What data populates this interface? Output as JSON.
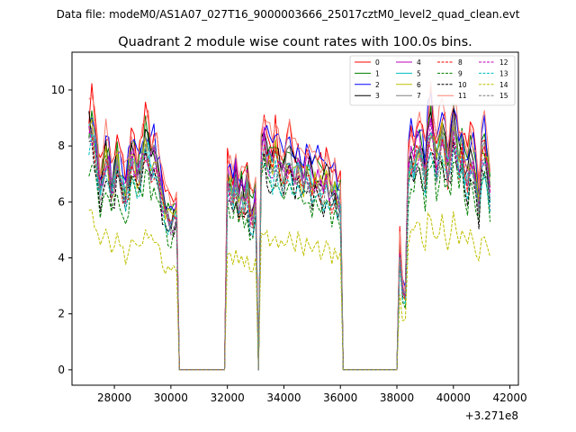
{
  "chart_data": {
    "type": "line",
    "suptitle": "Data file: modeM0/AS1A07_027T16_9000003666_25017cztM0_level2_quad_clean.evt",
    "title": "Quadrant 2 module wise count rates with 100.0s bins.",
    "xlabel": "",
    "ylabel": "",
    "x_offset_label": "+3.271e8",
    "xlim": [
      26500,
      42300
    ],
    "ylim": [
      -0.55,
      11.35
    ],
    "xticks": [
      28000,
      30000,
      32000,
      34000,
      36000,
      38000,
      40000,
      42000
    ],
    "yticks": [
      0,
      2,
      4,
      6,
      8,
      10
    ],
    "x_range": [
      27100,
      41300
    ],
    "bin_seconds": 100,
    "segments": [
      {
        "x": [
          27100,
          30200
        ],
        "profile": [
          0.9,
          0.92,
          0.89,
          0.78,
          0.7,
          0.74,
          0.8,
          0.76,
          0.68,
          0.72,
          0.78,
          0.74,
          0.7,
          0.66,
          0.72,
          0.8,
          0.78,
          0.74,
          0.76,
          0.8,
          0.86,
          0.82,
          0.78,
          0.8,
          0.76,
          0.7,
          0.64,
          0.6,
          0.58,
          0.56,
          0.58,
          0.6
        ]
      },
      {
        "x": [
          32000,
          33000
        ],
        "profile": [
          0.72,
          0.7,
          0.66,
          0.74,
          0.62,
          0.68,
          0.64,
          0.7,
          0.6,
          0.58,
          0.64
        ]
      },
      {
        "x": [
          33200,
          36000
        ],
        "profile": [
          0.82,
          0.86,
          0.8,
          0.78,
          0.76,
          0.82,
          0.78,
          0.74,
          0.72,
          0.78,
          0.8,
          0.76,
          0.74,
          0.78,
          0.72,
          0.7,
          0.76,
          0.74,
          0.7,
          0.72,
          0.74,
          0.7,
          0.68,
          0.72,
          0.7,
          0.66,
          0.68,
          0.64,
          0.66
        ]
      },
      {
        "x": [
          38100,
          41300
        ],
        "profile": [
          0.46,
          0.3,
          0.28,
          0.76,
          0.82,
          0.78,
          0.84,
          0.86,
          0.8,
          0.74,
          0.88,
          0.92,
          0.86,
          0.78,
          0.84,
          0.9,
          0.82,
          0.76,
          0.8,
          0.94,
          0.86,
          0.8,
          0.84,
          0.76,
          0.72,
          0.8,
          0.78,
          0.7,
          0.62,
          0.8,
          0.84,
          0.76,
          0.66
        ]
      }
    ],
    "legend_position": "top-right",
    "series": [
      {
        "name": "0",
        "color": "#ff0000",
        "dash": "solid",
        "peak": 10.5
      },
      {
        "name": "1",
        "color": "#008000",
        "dash": "solid",
        "peak": 9.9
      },
      {
        "name": "2",
        "color": "#0000ff",
        "dash": "solid",
        "peak": 10.3
      },
      {
        "name": "3",
        "color": "#000000",
        "dash": "solid",
        "peak": 9.7
      },
      {
        "name": "4",
        "color": "#bf00bf",
        "dash": "solid",
        "peak": 9.6
      },
      {
        "name": "5",
        "color": "#00bfbf",
        "dash": "solid",
        "peak": 9.3
      },
      {
        "name": "6",
        "color": "#bfbf00",
        "dash": "solid",
        "peak": 9.4
      },
      {
        "name": "7",
        "color": "#808080",
        "dash": "solid",
        "peak": 9.5
      },
      {
        "name": "8",
        "color": "#ff0000",
        "dash": "dashed",
        "peak": 9.1
      },
      {
        "name": "9",
        "color": "#008000",
        "dash": "dashed",
        "peak": 8.2
      },
      {
        "name": "10",
        "color": "#000000",
        "dash": "dashed",
        "peak": 8.6
      },
      {
        "name": "11",
        "color": "#fa8072",
        "dash": "solid",
        "peak": 10.6
      },
      {
        "name": "12",
        "color": "#bf00bf",
        "dash": "dashed",
        "peak": 9.2
      },
      {
        "name": "13",
        "color": "#00bfbf",
        "dash": "dashed",
        "peak": 8.8
      },
      {
        "name": "14",
        "color": "#bfbf00",
        "dash": "dashed",
        "peak": 6.0
      },
      {
        "name": "15",
        "color": "#808080",
        "dash": "dashed",
        "peak": 9.0
      }
    ]
  }
}
